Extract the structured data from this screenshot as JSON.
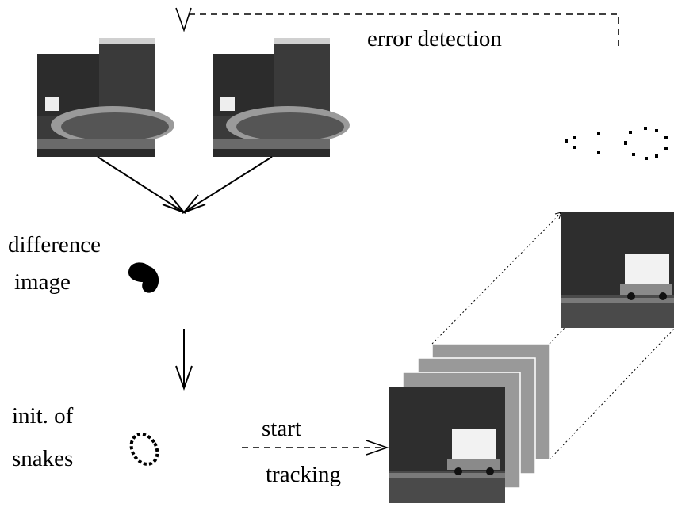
{
  "labels": {
    "error_detection": "error detection",
    "difference": "difference",
    "image": "image",
    "init_of": "init. of",
    "snakes": "snakes",
    "start": "start",
    "tracking": "tracking"
  }
}
